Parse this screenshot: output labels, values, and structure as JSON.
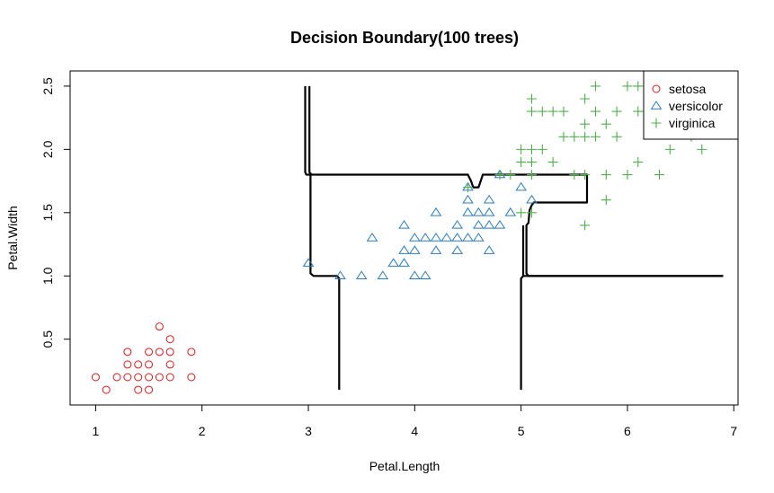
{
  "chart_data": {
    "type": "scatter",
    "title": "Decision Boundary(100 trees)",
    "xlabel": "Petal.Length",
    "ylabel": "Petal.Width",
    "xlim": [
      0.76,
      7.04
    ],
    "ylim": [
      -0.02,
      2.62
    ],
    "xticks": [
      1,
      2,
      3,
      4,
      5,
      6,
      7
    ],
    "yticks": [
      0.5,
      1.0,
      1.5,
      2.0,
      2.5
    ],
    "ytick_labels": [
      "0.5",
      "1.0",
      "1.5",
      "2.0",
      "2.5"
    ],
    "legend_position": "top-right",
    "series": [
      {
        "name": "setosa",
        "marker": "circle",
        "color": "#D7191C",
        "points": [
          [
            1.0,
            0.2
          ],
          [
            1.1,
            0.1
          ],
          [
            1.2,
            0.2
          ],
          [
            1.3,
            0.2
          ],
          [
            1.3,
            0.3
          ],
          [
            1.3,
            0.4
          ],
          [
            1.4,
            0.1
          ],
          [
            1.4,
            0.2
          ],
          [
            1.4,
            0.3
          ],
          [
            1.5,
            0.1
          ],
          [
            1.5,
            0.2
          ],
          [
            1.5,
            0.3
          ],
          [
            1.5,
            0.4
          ],
          [
            1.6,
            0.2
          ],
          [
            1.6,
            0.4
          ],
          [
            1.6,
            0.6
          ],
          [
            1.7,
            0.2
          ],
          [
            1.7,
            0.3
          ],
          [
            1.7,
            0.4
          ],
          [
            1.7,
            0.5
          ],
          [
            1.9,
            0.2
          ],
          [
            1.9,
            0.4
          ]
        ]
      },
      {
        "name": "versicolor",
        "marker": "triangle",
        "color": "#2B7BBA",
        "points": [
          [
            3.0,
            1.1
          ],
          [
            3.3,
            1.0
          ],
          [
            3.5,
            1.0
          ],
          [
            3.6,
            1.3
          ],
          [
            3.7,
            1.0
          ],
          [
            3.8,
            1.1
          ],
          [
            3.9,
            1.1
          ],
          [
            3.9,
            1.2
          ],
          [
            3.9,
            1.4
          ],
          [
            4.0,
            1.0
          ],
          [
            4.0,
            1.2
          ],
          [
            4.0,
            1.3
          ],
          [
            4.1,
            1.0
          ],
          [
            4.1,
            1.3
          ],
          [
            4.2,
            1.2
          ],
          [
            4.2,
            1.3
          ],
          [
            4.2,
            1.5
          ],
          [
            4.3,
            1.3
          ],
          [
            4.4,
            1.2
          ],
          [
            4.4,
            1.3
          ],
          [
            4.4,
            1.4
          ],
          [
            4.5,
            1.3
          ],
          [
            4.5,
            1.5
          ],
          [
            4.5,
            1.6
          ],
          [
            4.5,
            1.7
          ],
          [
            4.6,
            1.3
          ],
          [
            4.6,
            1.4
          ],
          [
            4.6,
            1.5
          ],
          [
            4.7,
            1.2
          ],
          [
            4.7,
            1.4
          ],
          [
            4.7,
            1.5
          ],
          [
            4.7,
            1.6
          ],
          [
            4.8,
            1.4
          ],
          [
            4.8,
            1.8
          ],
          [
            4.9,
            1.5
          ],
          [
            5.0,
            1.7
          ],
          [
            5.1,
            1.6
          ]
        ]
      },
      {
        "name": "virginica",
        "marker": "plus",
        "color": "#4DAF4A",
        "points": [
          [
            4.5,
            1.7
          ],
          [
            4.8,
            1.8
          ],
          [
            4.9,
            1.8
          ],
          [
            5.0,
            1.5
          ],
          [
            5.0,
            1.9
          ],
          [
            5.0,
            2.0
          ],
          [
            5.1,
            1.5
          ],
          [
            5.1,
            1.8
          ],
          [
            5.1,
            1.9
          ],
          [
            5.1,
            2.0
          ],
          [
            5.1,
            2.3
          ],
          [
            5.1,
            2.4
          ],
          [
            5.2,
            2.0
          ],
          [
            5.2,
            2.3
          ],
          [
            5.3,
            1.9
          ],
          [
            5.3,
            2.3
          ],
          [
            5.4,
            2.1
          ],
          [
            5.4,
            2.3
          ],
          [
            5.5,
            1.8
          ],
          [
            5.5,
            2.1
          ],
          [
            5.6,
            1.4
          ],
          [
            5.6,
            1.8
          ],
          [
            5.6,
            2.1
          ],
          [
            5.6,
            2.2
          ],
          [
            5.6,
            2.4
          ],
          [
            5.7,
            2.1
          ],
          [
            5.7,
            2.3
          ],
          [
            5.7,
            2.5
          ],
          [
            5.8,
            1.6
          ],
          [
            5.8,
            1.8
          ],
          [
            5.8,
            2.2
          ],
          [
            5.9,
            2.1
          ],
          [
            5.9,
            2.3
          ],
          [
            6.0,
            1.8
          ],
          [
            6.0,
            2.5
          ],
          [
            6.1,
            1.9
          ],
          [
            6.1,
            2.3
          ],
          [
            6.1,
            2.5
          ],
          [
            6.3,
            1.8
          ],
          [
            6.4,
            2.0
          ],
          [
            6.6,
            2.1
          ],
          [
            6.7,
            2.0
          ],
          [
            6.9,
            2.3
          ]
        ]
      }
    ],
    "boundaries": [
      [
        [
          2.97,
          2.5
        ],
        [
          2.97,
          1.82
        ],
        [
          2.98,
          1.8
        ],
        [
          3.02,
          1.8
        ],
        [
          3.02,
          1.02
        ],
        [
          3.05,
          1.0
        ],
        [
          3.27,
          1.0
        ],
        [
          3.29,
          0.98
        ],
        [
          3.29,
          0.1
        ]
      ],
      [
        [
          3.01,
          2.5
        ],
        [
          3.01,
          1.82
        ],
        [
          3.03,
          1.8
        ],
        [
          4.5,
          1.8
        ],
        [
          4.53,
          1.75
        ],
        [
          4.55,
          1.7
        ],
        [
          4.6,
          1.7
        ],
        [
          4.62,
          1.75
        ],
        [
          4.64,
          1.8
        ],
        [
          5.62,
          1.8
        ],
        [
          5.62,
          1.58
        ],
        [
          5.6,
          1.58
        ],
        [
          5.12,
          1.58
        ],
        [
          5.1,
          1.56
        ],
        [
          5.08,
          1.52
        ],
        [
          5.07,
          1.42
        ],
        [
          5.05,
          1.4
        ],
        [
          5.05,
          1.02
        ],
        [
          5.07,
          1.0
        ],
        [
          6.9,
          1.0
        ]
      ],
      [
        [
          5.0,
          0.1
        ],
        [
          5.0,
          0.98
        ],
        [
          5.02,
          1.0
        ],
        [
          6.9,
          1.0
        ]
      ],
      [
        [
          5.02,
          1.4
        ],
        [
          5.02,
          1.0
        ]
      ]
    ]
  }
}
